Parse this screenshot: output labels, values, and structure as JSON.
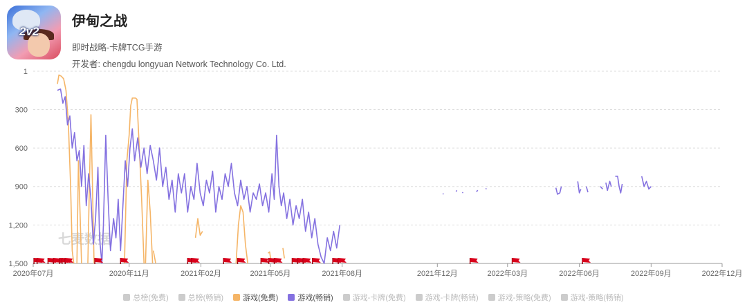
{
  "app": {
    "title": "伊甸之战",
    "genre": "即时战略-卡牌TCG手游",
    "developer": "开发者: chengdu longyuan Network Technology Co. Ltd.",
    "icon_badge": "2v2"
  },
  "watermark": "七麦数据",
  "colors": {
    "free": "#f5b567",
    "paid": "#8471e0",
    "inactive": "#cccccc",
    "flag": "#d9001b",
    "grid": "#dddddd"
  },
  "legend": [
    {
      "label": "总榜(免费)",
      "active": false,
      "color": "#cccccc"
    },
    {
      "label": "总榜(畅销)",
      "active": false,
      "color": "#cccccc"
    },
    {
      "label": "游戏(免费)",
      "active": true,
      "color": "#f5b567"
    },
    {
      "label": "游戏(畅销)",
      "active": true,
      "color": "#8471e0"
    },
    {
      "label": "游戏-卡牌(免费)",
      "active": false,
      "color": "#cccccc"
    },
    {
      "label": "游戏-卡牌(畅销)",
      "active": false,
      "color": "#cccccc"
    },
    {
      "label": "游戏-策略(免费)",
      "active": false,
      "color": "#cccccc"
    },
    {
      "label": "游戏-策略(畅销)",
      "active": false,
      "color": "#cccccc"
    }
  ],
  "chart_data": {
    "type": "line",
    "y_inverted": true,
    "ylim": [
      1,
      1500
    ],
    "y_ticks": [
      {
        "value": 1,
        "label": "1"
      },
      {
        "value": 300,
        "label": "300"
      },
      {
        "value": 600,
        "label": "600"
      },
      {
        "value": 900,
        "label": "900"
      },
      {
        "value": 1200,
        "label": "1,200"
      },
      {
        "value": 1500,
        "label": "1,500"
      }
    ],
    "xlim": [
      "2020-07-01",
      "2022-12-01"
    ],
    "x_ticks": [
      {
        "date": "2020-07-01",
        "label": "2020年07月"
      },
      {
        "date": "2020-11-01",
        "label": "2020年11月"
      },
      {
        "date": "2021-02-01",
        "label": "2021年02月"
      },
      {
        "date": "2021-05-01",
        "label": "2021年05月"
      },
      {
        "date": "2021-08-01",
        "label": "2021年08月"
      },
      {
        "date": "2021-12-01",
        "label": "2021年12月"
      },
      {
        "date": "2022-03-01",
        "label": "2022年03月"
      },
      {
        "date": "2022-06-01",
        "label": "2022年06月"
      },
      {
        "date": "2022-09-01",
        "label": "2022年09月"
      },
      {
        "date": "2022-12-01",
        "label": "2022年12月"
      }
    ],
    "series": [
      {
        "name": "游戏(免费)",
        "color": "#f5b567",
        "segments": [
          [
            [
              "2020-08-01",
              100
            ],
            [
              "2020-08-03",
              30
            ],
            [
              "2020-08-06",
              40
            ],
            [
              "2020-08-09",
              60
            ],
            [
              "2020-08-12",
              150
            ],
            [
              "2020-08-15",
              400
            ],
            [
              "2020-08-18",
              900
            ],
            [
              "2020-08-20",
              1400
            ],
            [
              "2020-08-22",
              1500
            ]
          ],
          [
            [
              "2020-08-26",
              1500
            ],
            [
              "2020-08-28",
              700
            ],
            [
              "2020-08-30",
              1100
            ],
            [
              "2020-09-01",
              1500
            ]
          ],
          [
            [
              "2020-09-09",
              1500
            ],
            [
              "2020-09-11",
              900
            ],
            [
              "2020-09-13",
              340
            ],
            [
              "2020-09-15",
              900
            ],
            [
              "2020-09-17",
              1500
            ]
          ],
          [
            [
              "2020-10-26",
              1500
            ],
            [
              "2020-10-29",
              700
            ],
            [
              "2020-11-01",
              500
            ],
            [
              "2020-11-03",
              270
            ],
            [
              "2020-11-05",
              210
            ],
            [
              "2020-11-09",
              210
            ],
            [
              "2020-11-11",
              220
            ],
            [
              "2020-11-14",
              600
            ],
            [
              "2020-11-17",
              1000
            ],
            [
              "2020-11-20",
              1500
            ]
          ],
          [
            [
              "2020-11-22",
              1500
            ],
            [
              "2020-11-25",
              850
            ],
            [
              "2020-11-28",
              1100
            ],
            [
              "2020-12-01",
              1500
            ]
          ],
          [
            [
              "2020-12-02",
              1400
            ],
            [
              "2020-12-05",
              1500
            ]
          ],
          [
            [
              "2021-01-25",
              1300
            ],
            [
              "2021-01-28",
              1150
            ],
            [
              "2021-01-31",
              1280
            ],
            [
              "2021-02-03",
              1250
            ]
          ],
          [
            [
              "2021-03-18",
              1500
            ],
            [
              "2021-03-21",
              1200
            ],
            [
              "2021-03-24",
              1050
            ],
            [
              "2021-03-27",
              1100
            ],
            [
              "2021-03-30",
              1350
            ],
            [
              "2021-04-02",
              1500
            ]
          ],
          [
            [
              "2021-04-28",
              1420
            ],
            [
              "2021-04-30",
              1410
            ],
            [
              "2021-05-02",
              1490
            ]
          ],
          [
            [
              "2021-05-17",
              1380
            ],
            [
              "2021-05-19",
              1460
            ]
          ],
          [
            [
              "2021-06-10",
              1480
            ],
            [
              "2021-06-14",
              1490
            ],
            [
              "2021-06-17",
              1470
            ]
          ]
        ]
      },
      {
        "name": "游戏(畅销)",
        "color": "#8471e0",
        "segments": [
          [
            [
              "2020-08-01",
              150
            ],
            [
              "2020-08-05",
              140
            ],
            [
              "2020-08-08",
              250
            ],
            [
              "2020-08-11",
              200
            ],
            [
              "2020-08-14",
              420
            ],
            [
              "2020-08-17",
              350
            ],
            [
              "2020-08-20",
              600
            ],
            [
              "2020-08-23",
              480
            ],
            [
              "2020-08-26",
              700
            ],
            [
              "2020-08-29",
              620
            ],
            [
              "2020-09-01",
              900
            ],
            [
              "2020-09-04",
              580
            ],
            [
              "2020-09-07",
              1050
            ],
            [
              "2020-09-10",
              800
            ],
            [
              "2020-09-13",
              1000
            ],
            [
              "2020-09-16",
              1350
            ],
            [
              "2020-09-19",
              1150
            ],
            [
              "2020-09-22",
              750
            ],
            [
              "2020-09-24",
              1300
            ],
            [
              "2020-09-27",
              1500
            ],
            [
              "2020-09-29",
              1200
            ],
            [
              "2020-10-02",
              500
            ],
            [
              "2020-10-05",
              1000
            ],
            [
              "2020-10-08",
              1400
            ],
            [
              "2020-10-12",
              1150
            ],
            [
              "2020-10-15",
              1300
            ],
            [
              "2020-10-18",
              1000
            ],
            [
              "2020-10-21",
              1400
            ],
            [
              "2020-10-24",
              1050
            ],
            [
              "2020-10-27",
              700
            ],
            [
              "2020-10-30",
              900
            ],
            [
              "2020-11-02",
              600
            ],
            [
              "2020-11-05",
              450
            ],
            [
              "2020-11-08",
              700
            ],
            [
              "2020-11-12",
              520
            ],
            [
              "2020-11-16",
              750
            ],
            [
              "2020-11-20",
              600
            ],
            [
              "2020-11-24",
              800
            ],
            [
              "2020-11-28",
              580
            ],
            [
              "2020-12-02",
              700
            ],
            [
              "2020-12-06",
              850
            ],
            [
              "2020-12-10",
              600
            ],
            [
              "2020-12-14",
              900
            ],
            [
              "2020-12-18",
              750
            ],
            [
              "2020-12-22",
              1000
            ],
            [
              "2020-12-26",
              850
            ],
            [
              "2020-12-30",
              1100
            ],
            [
              "2021-01-03",
              800
            ],
            [
              "2021-01-07",
              950
            ],
            [
              "2021-01-11",
              800
            ],
            [
              "2021-01-15",
              1100
            ],
            [
              "2021-01-19",
              900
            ],
            [
              "2021-01-23",
              1000
            ],
            [
              "2021-01-27",
              720
            ],
            [
              "2021-01-31",
              950
            ],
            [
              "2021-02-04",
              1050
            ],
            [
              "2021-02-08",
              850
            ],
            [
              "2021-02-12",
              950
            ],
            [
              "2021-02-16",
              780
            ],
            [
              "2021-02-20",
              1100
            ],
            [
              "2021-02-24",
              900
            ],
            [
              "2021-02-28",
              1000
            ],
            [
              "2021-03-04",
              800
            ],
            [
              "2021-03-08",
              900
            ],
            [
              "2021-03-12",
              720
            ],
            [
              "2021-03-16",
              950
            ],
            [
              "2021-03-20",
              1050
            ],
            [
              "2021-03-24",
              850
            ],
            [
              "2021-03-28",
              1000
            ],
            [
              "2021-04-01",
              900
            ],
            [
              "2021-04-05",
              1100
            ],
            [
              "2021-04-09",
              950
            ],
            [
              "2021-04-13",
              1000
            ],
            [
              "2021-04-17",
              880
            ],
            [
              "2021-04-21",
              1050
            ],
            [
              "2021-04-25",
              950
            ],
            [
              "2021-04-29",
              1100
            ],
            [
              "2021-05-03",
              800
            ],
            [
              "2021-05-06",
              1000
            ],
            [
              "2021-05-09",
              500
            ],
            [
              "2021-05-12",
              900
            ],
            [
              "2021-05-15",
              1050
            ],
            [
              "2021-05-18",
              950
            ],
            [
              "2021-05-22",
              1150
            ],
            [
              "2021-05-26",
              1000
            ],
            [
              "2021-05-30",
              1200
            ],
            [
              "2021-06-03",
              1050
            ],
            [
              "2021-06-07",
              1150
            ],
            [
              "2021-06-11",
              1000
            ],
            [
              "2021-06-15",
              1250
            ],
            [
              "2021-06-19",
              1100
            ],
            [
              "2021-06-23",
              1300
            ],
            [
              "2021-06-27",
              1150
            ],
            [
              "2021-07-01",
              1350
            ],
            [
              "2021-07-05",
              1450
            ],
            [
              "2021-07-09",
              1500
            ],
            [
              "2021-07-13",
              1300
            ],
            [
              "2021-07-17",
              1400
            ],
            [
              "2021-07-21",
              1250
            ],
            [
              "2021-07-25",
              1380
            ],
            [
              "2021-07-29",
              1200
            ]
          ],
          [
            [
              "2021-12-08",
              960
            ],
            [
              "2021-12-09",
              955
            ]
          ],
          [
            [
              "2021-12-25",
              940
            ],
            [
              "2021-12-26",
              930
            ]
          ],
          [
            [
              "2022-01-02",
              950
            ],
            [
              "2022-01-03",
              945
            ]
          ],
          [
            [
              "2022-01-20",
              940
            ],
            [
              "2022-01-22",
              930
            ]
          ],
          [
            [
              "2022-02-01",
              920
            ],
            [
              "2022-02-02",
              915
            ]
          ],
          [
            [
              "2022-05-02",
              910
            ],
            [
              "2022-05-04",
              960
            ],
            [
              "2022-05-07",
              950
            ],
            [
              "2022-05-09",
              900
            ]
          ],
          [
            [
              "2022-05-30",
              860
            ],
            [
              "2022-06-01",
              950
            ],
            [
              "2022-06-03",
              920
            ]
          ],
          [
            [
              "2022-06-10",
              900
            ],
            [
              "2022-06-12",
              945
            ]
          ],
          [
            [
              "2022-06-28",
              900
            ],
            [
              "2022-07-01",
              920
            ]
          ],
          [
            [
              "2022-07-05",
              870
            ],
            [
              "2022-07-07",
              930
            ],
            [
              "2022-07-10",
              860
            ],
            [
              "2022-07-12",
              900
            ]
          ],
          [
            [
              "2022-07-17",
              820
            ],
            [
              "2022-07-20",
              820
            ],
            [
              "2022-07-22",
              900
            ],
            [
              "2022-07-24",
              950
            ],
            [
              "2022-07-26",
              880
            ]
          ],
          [
            [
              "2022-08-20",
              820
            ],
            [
              "2022-08-23",
              900
            ],
            [
              "2022-08-26",
              860
            ],
            [
              "2022-08-29",
              920
            ],
            [
              "2022-09-01",
              900
            ]
          ]
        ]
      }
    ],
    "event_flags": [
      "2020-07-02",
      "2020-07-06",
      "2020-07-20",
      "2020-07-27",
      "2020-08-04",
      "2020-08-07",
      "2020-08-11",
      "2020-09-18",
      "2020-10-21",
      "2021-01-15",
      "2021-01-20",
      "2021-03-02",
      "2021-03-20",
      "2021-04-19",
      "2021-04-29",
      "2021-05-06",
      "2021-05-29",
      "2021-06-05",
      "2021-06-12",
      "2021-06-24",
      "2021-07-20",
      "2021-07-27",
      "2022-01-12",
      "2022-03-07",
      "2022-06-05"
    ],
    "grid": true
  }
}
